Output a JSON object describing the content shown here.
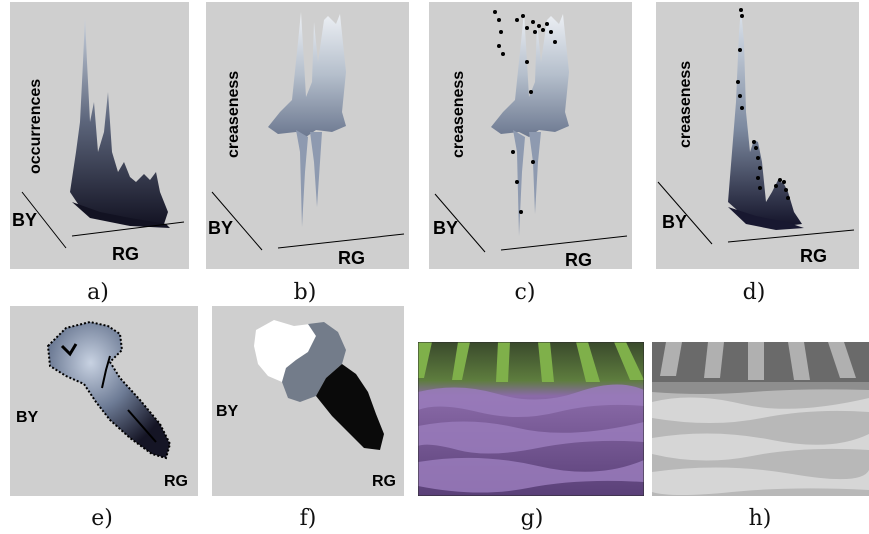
{
  "panels": [
    {
      "id": "a",
      "caption": "a)",
      "z_label": "occurrences",
      "y_label": "BY",
      "x_label": "RG"
    },
    {
      "id": "b",
      "caption": "b)",
      "z_label": "creaseness",
      "y_label": "BY",
      "x_label": "RG"
    },
    {
      "id": "c",
      "caption": "c)",
      "z_label": "creaseness",
      "y_label": "BY",
      "x_label": "RG"
    },
    {
      "id": "d",
      "caption": "d)",
      "z_label": "creaseness",
      "y_label": "BY",
      "x_label": "RG"
    },
    {
      "id": "e",
      "caption": "e)",
      "y_label": "BY",
      "x_label": "RG"
    },
    {
      "id": "f",
      "caption": "f)",
      "y_label": "BY",
      "x_label": "RG"
    },
    {
      "id": "g",
      "caption": "g)"
    },
    {
      "id": "h",
      "caption": "h)"
    }
  ],
  "colors": {
    "panel_background": "#cfcfcf",
    "surface_light": "#b8c2d2",
    "surface_dark": "#1a1a2a",
    "lavender": "#8a6aa8",
    "foliage": "#5e8a3a",
    "segment_gray": "#6c6c6c"
  }
}
